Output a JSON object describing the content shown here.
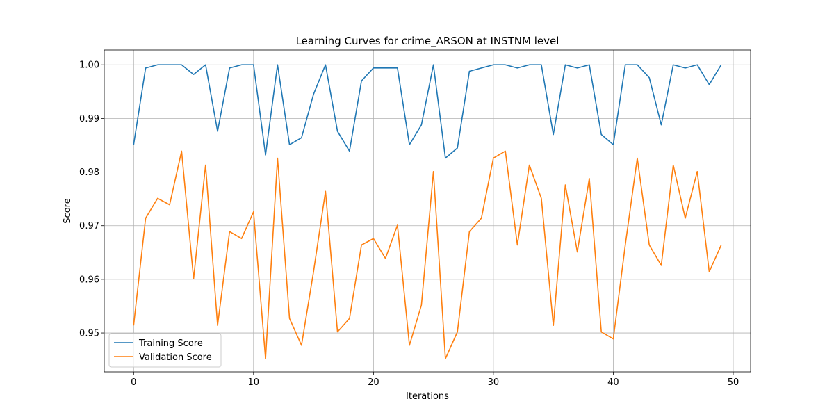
{
  "chart_data": {
    "type": "line",
    "title": "Learning Curves for crime_ARSON at INSTNM level",
    "xlabel": "Iterations",
    "ylabel": "Score",
    "xlim": [
      -2.45,
      51.45
    ],
    "ylim": [
      0.94275,
      1.00275
    ],
    "xticks": [
      0,
      10,
      20,
      30,
      40,
      50
    ],
    "yticks": [
      0.95,
      0.96,
      0.97,
      0.98,
      0.99,
      1.0
    ],
    "ytick_labels": [
      "0.95",
      "0.96",
      "0.97",
      "0.98",
      "0.99",
      "1.00"
    ],
    "grid": true,
    "legend_position": "bottom-left",
    "x": [
      0,
      1,
      2,
      3,
      4,
      5,
      6,
      7,
      8,
      9,
      10,
      11,
      12,
      13,
      14,
      15,
      16,
      17,
      18,
      19,
      20,
      21,
      22,
      23,
      24,
      25,
      26,
      27,
      28,
      29,
      30,
      31,
      32,
      33,
      34,
      35,
      36,
      37,
      38,
      39,
      40,
      41,
      42,
      43,
      44,
      45,
      46,
      47,
      48,
      49
    ],
    "series": [
      {
        "name": "Training Score",
        "color": "#1f77b4",
        "values": [
          0.9851,
          0.9994,
          1.0,
          1.0,
          1.0,
          0.9982,
          1.0,
          0.9876,
          0.9994,
          1.0,
          1.0,
          0.9832,
          1.0,
          0.9851,
          0.9864,
          0.9945,
          1.0,
          0.9876,
          0.9839,
          0.997,
          0.9994,
          0.9994,
          0.9994,
          0.9851,
          0.9888,
          1.0,
          0.9826,
          0.9845,
          0.9988,
          0.9994,
          1.0,
          1.0,
          0.9994,
          1.0,
          1.0,
          0.987,
          1.0,
          0.9994,
          1.0,
          0.987,
          0.9851,
          1.0,
          1.0,
          0.9976,
          0.9888,
          1.0,
          0.9994,
          1.0,
          0.9963,
          1.0
        ]
      },
      {
        "name": "Validation Score",
        "color": "#ff7f0e",
        "values": [
          0.9514,
          0.9714,
          0.9751,
          0.9739,
          0.9839,
          0.9601,
          0.9813,
          0.9514,
          0.9689,
          0.9676,
          0.9726,
          0.9452,
          0.9826,
          0.9527,
          0.9477,
          0.9614,
          0.9764,
          0.9502,
          0.9527,
          0.9664,
          0.9676,
          0.9639,
          0.9701,
          0.9477,
          0.9552,
          0.9801,
          0.9452,
          0.9502,
          0.9689,
          0.9714,
          0.9826,
          0.9839,
          0.9664,
          0.9813,
          0.9751,
          0.9514,
          0.9776,
          0.9651,
          0.9788,
          0.9502,
          0.9489,
          0.9664,
          0.9826,
          0.9664,
          0.9626,
          0.9813,
          0.9714,
          0.9801,
          0.9614,
          0.9664
        ]
      }
    ]
  }
}
